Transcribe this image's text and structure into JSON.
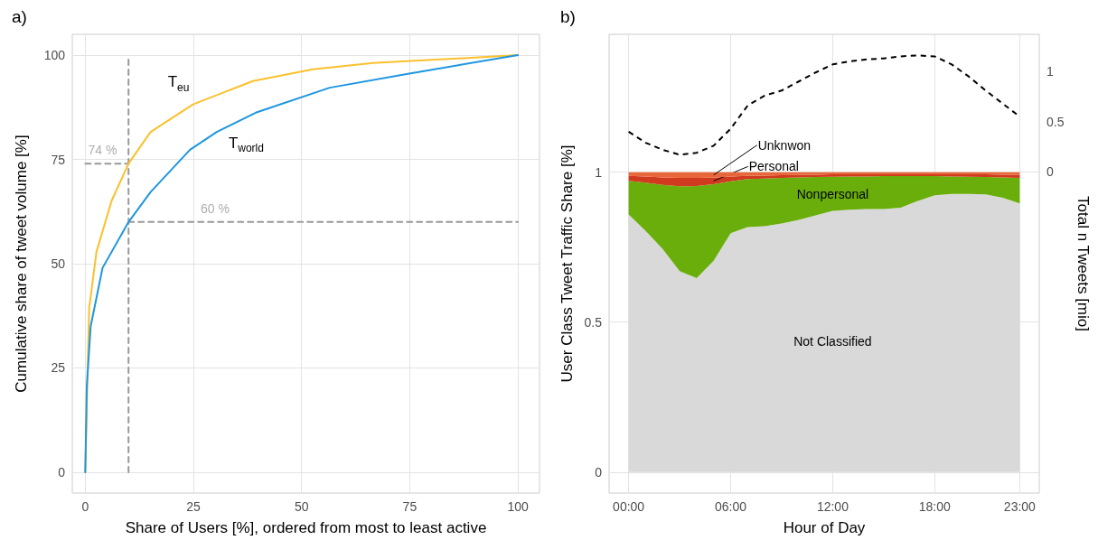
{
  "chart_data": [
    {
      "type": "line",
      "title": "a)",
      "xlabel": "Share of Users [%], ordered from most to least active",
      "ylabel": "Cumulative share of tweet volume [%]",
      "xlim": [
        -3,
        105
      ],
      "ylim": [
        -5,
        105
      ],
      "xticks": [
        0,
        25,
        50,
        75,
        100
      ],
      "yticks": [
        0,
        25,
        50,
        75,
        100
      ],
      "grid": true,
      "series": [
        {
          "name": "T$_{eu}$",
          "color": "#fbc02d",
          "x": [
            0,
            0.55,
            0.9,
            2.6,
            6.1,
            10,
            15.1,
            24.9,
            38.75,
            52.6,
            66.5,
            100
          ],
          "values": [
            0,
            24.3,
            39.3,
            52.9,
            65.1,
            74,
            81.6,
            88.2,
            93.8,
            96.6,
            98.1,
            100
          ]
        },
        {
          "name": "T$_{world}$",
          "color": "#1e96e0",
          "x": [
            0,
            0.35,
            1.25,
            4,
            10,
            15.1,
            24.2,
            30.4,
            39.4,
            56.5,
            74.9,
            100
          ],
          "values": [
            0,
            20.6,
            35,
            49,
            60,
            67.2,
            77.3,
            81.6,
            86.2,
            92.2,
            95.6,
            100
          ]
        },
        {
          "type": "line",
          "color": "#999999",
          "line_style": "dashed",
          "x": [
            10,
            10
          ],
          "values": [
            0,
            100
          ]
        },
        {
          "type": "line",
          "color": "#999999",
          "line_style": "dashed",
          "x": [
            0,
            10
          ],
          "values": [
            74,
            74
          ]
        },
        {
          "type": "line",
          "color": "#999999",
          "line_style": "dashed",
          "x": [
            10,
            100
          ],
          "values": [
            60,
            60
          ]
        }
      ],
      "annotations": [
        {
          "text": "74 %",
          "x": 4,
          "y": 74
        },
        {
          "text": "60 %",
          "x": 30,
          "y": 60
        }
      ]
    },
    {
      "type": "area",
      "title": "b)",
      "xlabel": "Hour of Day",
      "ylabel": "User Class Tweet Traffic Share [%]",
      "y2label": "Total n Tweets [mio]",
      "stacked": true,
      "grid": true,
      "x": [
        0,
        1,
        2,
        3,
        4,
        5,
        6,
        7,
        8,
        9,
        10,
        11,
        12,
        13,
        14,
        15,
        16,
        17,
        18,
        19,
        20,
        21,
        22,
        23
      ],
      "xlim": [
        -1.15,
        24.15
      ],
      "xticks": [
        {
          "value": 0,
          "label": "00:00"
        },
        {
          "value": 6,
          "label": "06:00"
        },
        {
          "value": 12,
          "label": "12:00"
        },
        {
          "value": 18,
          "label": "18:00"
        },
        {
          "value": 23,
          "label": "23:00"
        }
      ],
      "ylim": [
        -0.07,
        1.46
      ],
      "yticks": [
        0,
        0.5,
        1
      ],
      "y2lim": [
        -3.2,
        1.37
      ],
      "y2ticks": [
        0,
        0.5,
        1
      ],
      "series": [
        {
          "name": "Not Classified",
          "color": "#d9d9d9",
          "values": [
            0.859,
            0.804,
            0.744,
            0.67,
            0.647,
            0.705,
            0.797,
            0.817,
            0.82,
            0.829,
            0.841,
            0.856,
            0.871,
            0.875,
            0.877,
            0.877,
            0.882,
            0.904,
            0.923,
            0.928,
            0.928,
            0.926,
            0.915,
            0.896
          ]
        },
        {
          "name": "Nonpersonal",
          "color": "#6aae0b",
          "values": [
            0.112,
            0.161,
            0.214,
            0.283,
            0.307,
            0.255,
            0.173,
            0.16,
            0.159,
            0.152,
            0.142,
            0.128,
            0.114,
            0.111,
            0.109,
            0.11,
            0.105,
            0.083,
            0.064,
            0.058,
            0.057,
            0.058,
            0.068,
            0.085
          ]
        },
        {
          "name": "Personal",
          "color": "#d03a1e",
          "values": [
            0.017,
            0.021,
            0.025,
            0.028,
            0.027,
            0.022,
            0.016,
            0.011,
            0.01,
            0.009,
            0.008,
            0.008,
            0.008,
            0.007,
            0.007,
            0.006,
            0.006,
            0.006,
            0.006,
            0.007,
            0.008,
            0.009,
            0.009,
            0.011
          ]
        },
        {
          "name": "Unknwon",
          "color": "#e8673a",
          "values": [
            0.012,
            0.014,
            0.017,
            0.019,
            0.019,
            0.018,
            0.014,
            0.012,
            0.011,
            0.01,
            0.009,
            0.008,
            0.007,
            0.007,
            0.007,
            0.007,
            0.007,
            0.007,
            0.007,
            0.007,
            0.007,
            0.007,
            0.008,
            0.008
          ]
        },
        {
          "type": "line",
          "axis": "y2",
          "color": "#000000",
          "line_style": "dashed",
          "values": [
            0.4,
            0.29,
            0.22,
            0.17,
            0.19,
            0.26,
            0.43,
            0.66,
            0.76,
            0.81,
            0.9,
            0.99,
            1.07,
            1.1,
            1.12,
            1.13,
            1.15,
            1.16,
            1.15,
            1.07,
            0.95,
            0.81,
            0.68,
            0.55
          ]
        }
      ]
    }
  ]
}
